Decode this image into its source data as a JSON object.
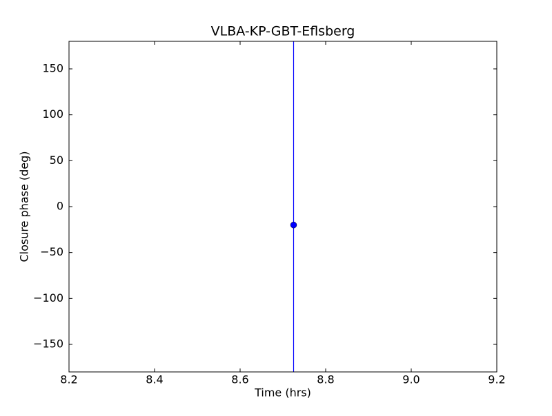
{
  "chart_data": {
    "type": "errorbar",
    "title": "VLBA-KP-GBT-Eflsberg",
    "xlabel": "Time (hrs)",
    "ylabel": "Closure phase (deg)",
    "x": [
      8.725
    ],
    "values": [
      -20
    ],
    "errors": [
      200
    ],
    "color": "#0000ff",
    "xlim": [
      8.2,
      9.2
    ],
    "xticks": [
      8.2,
      8.4,
      8.6,
      8.8,
      {
        "value": 9,
        "label": "9.0"
      },
      9.2
    ],
    "ylim": [
      -180,
      180
    ],
    "yticks": [
      {
        "value": -150,
        "label": "−150"
      },
      {
        "value": -100,
        "label": "−100"
      },
      {
        "value": -50,
        "label": "−50"
      },
      0,
      50,
      100,
      150
    ],
    "grid": false
  }
}
